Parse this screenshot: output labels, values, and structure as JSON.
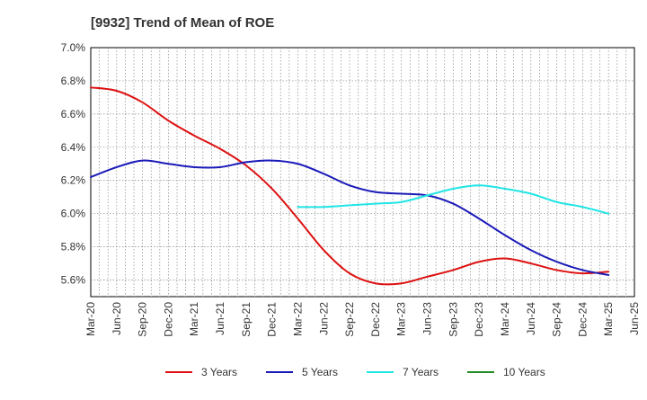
{
  "chart_data": {
    "type": "line",
    "title": "[9932]  Trend of Mean of ROE",
    "xlabel": "",
    "ylabel": "",
    "ylim": [
      5.5,
      7.0
    ],
    "yticks": [
      5.6,
      5.8,
      6.0,
      6.2,
      6.4,
      6.6,
      6.8,
      7.0
    ],
    "ytick_labels": [
      "5.6%",
      "5.8%",
      "6.0%",
      "6.2%",
      "6.4%",
      "6.6%",
      "6.8%",
      "7.0%"
    ],
    "x_start": "Mar-20",
    "x_end": "Jun-25",
    "x_tick_labels": [
      "Mar-20",
      "Jun-20",
      "Sep-20",
      "Dec-20",
      "Mar-21",
      "Jun-21",
      "Sep-21",
      "Dec-21",
      "Mar-22",
      "Jun-22",
      "Sep-22",
      "Dec-22",
      "Mar-23",
      "Jun-23",
      "Sep-23",
      "Dec-23",
      "Mar-24",
      "Jun-24",
      "Sep-24",
      "Dec-24",
      "Mar-25",
      "Jun-25"
    ],
    "grid": true,
    "legend_position": "bottom",
    "series": [
      {
        "name": "3 Years",
        "color": "#dd1111",
        "points": [
          [
            "Mar-20",
            6.76
          ],
          [
            "Jun-20",
            6.74
          ],
          [
            "Sep-20",
            6.67
          ],
          [
            "Dec-20",
            6.56
          ],
          [
            "Mar-21",
            6.47
          ],
          [
            "Jun-21",
            6.39
          ],
          [
            "Sep-21",
            6.29
          ],
          [
            "Dec-21",
            6.15
          ],
          [
            "Mar-22",
            5.97
          ],
          [
            "Jun-22",
            5.78
          ],
          [
            "Sep-22",
            5.64
          ],
          [
            "Dec-22",
            5.58
          ],
          [
            "Mar-23",
            5.58
          ],
          [
            "Jun-23",
            5.62
          ],
          [
            "Sep-23",
            5.66
          ],
          [
            "Dec-23",
            5.71
          ],
          [
            "Mar-24",
            5.73
          ],
          [
            "Jun-24",
            5.7
          ],
          [
            "Sep-24",
            5.66
          ],
          [
            "Dec-24",
            5.64
          ],
          [
            "Mar-25",
            5.65
          ]
        ]
      },
      {
        "name": "5 Years",
        "color": "#1a1ab8",
        "points": [
          [
            "Mar-20",
            6.22
          ],
          [
            "Jun-20",
            6.28
          ],
          [
            "Sep-20",
            6.32
          ],
          [
            "Dec-20",
            6.3
          ],
          [
            "Mar-21",
            6.28
          ],
          [
            "Jun-21",
            6.28
          ],
          [
            "Sep-21",
            6.31
          ],
          [
            "Dec-21",
            6.32
          ],
          [
            "Mar-22",
            6.3
          ],
          [
            "Jun-22",
            6.24
          ],
          [
            "Sep-22",
            6.17
          ],
          [
            "Dec-22",
            6.13
          ],
          [
            "Mar-23",
            6.12
          ],
          [
            "Jun-23",
            6.11
          ],
          [
            "Sep-23",
            6.06
          ],
          [
            "Dec-23",
            5.97
          ],
          [
            "Mar-24",
            5.87
          ],
          [
            "Jun-24",
            5.78
          ],
          [
            "Sep-24",
            5.71
          ],
          [
            "Dec-24",
            5.66
          ],
          [
            "Mar-25",
            5.63
          ]
        ]
      },
      {
        "name": "7 Years",
        "color": "#22e5e5",
        "points": [
          [
            "Mar-22",
            6.04
          ],
          [
            "Jun-22",
            6.04
          ],
          [
            "Sep-22",
            6.05
          ],
          [
            "Dec-22",
            6.06
          ],
          [
            "Mar-23",
            6.07
          ],
          [
            "Jun-23",
            6.11
          ],
          [
            "Sep-23",
            6.15
          ],
          [
            "Dec-23",
            6.17
          ],
          [
            "Mar-24",
            6.15
          ],
          [
            "Jun-24",
            6.12
          ],
          [
            "Sep-24",
            6.07
          ],
          [
            "Dec-24",
            6.04
          ],
          [
            "Mar-25",
            6.0
          ]
        ]
      },
      {
        "name": "10 Years",
        "color": "#228b22",
        "points": []
      }
    ]
  }
}
